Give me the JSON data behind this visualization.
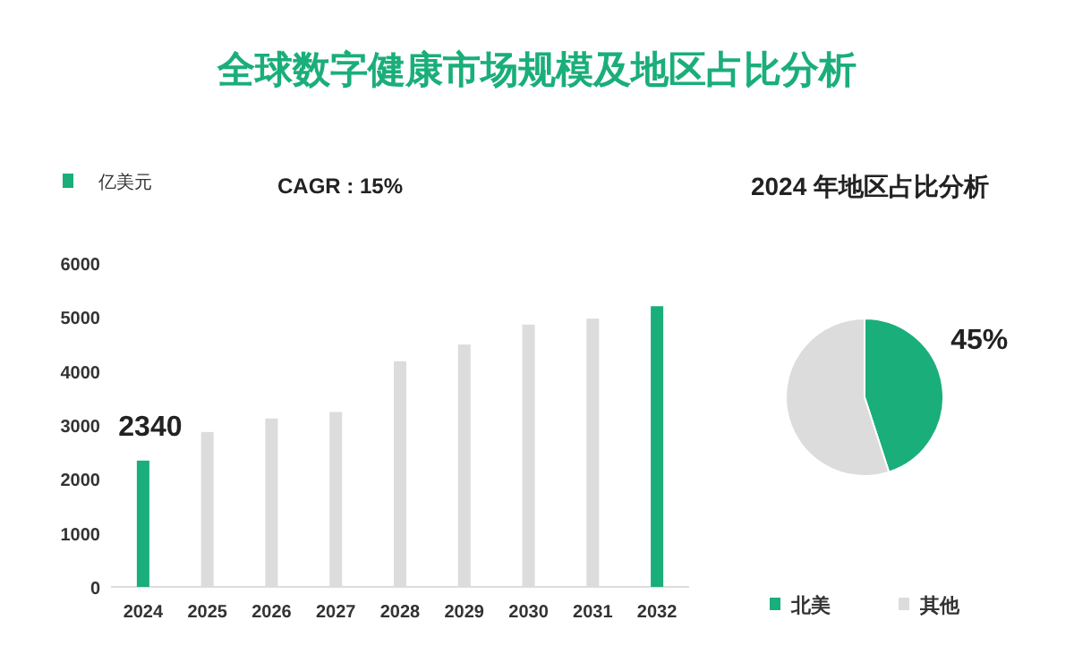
{
  "chart_data": [
    {
      "type": "bar",
      "title": "全球数字健康市场规模及地区占比分析",
      "annotations": [
        "CAGR : 15%"
      ],
      "categories": [
        "2024",
        "2025",
        "2026",
        "2027",
        "2028",
        "2029",
        "2030",
        "2031",
        "2032"
      ],
      "series": [
        {
          "name": "亿美元",
          "color": "#1aae7a",
          "colors": [
            "#1aae7a",
            "#dcdcdc",
            "#dcdcdc",
            "#dcdcdc",
            "#dcdcdc",
            "#dcdcdc",
            "#dcdcdc",
            "#dcdcdc",
            "#1aae7a"
          ],
          "values": [
            2340,
            2870,
            3120,
            3240,
            4180,
            4490,
            4860,
            4970,
            5200
          ],
          "value_labels": [
            "2340",
            null,
            null,
            null,
            null,
            null,
            null,
            null,
            null
          ]
        }
      ],
      "ylim": [
        0,
        6000
      ],
      "yticks": [
        0,
        1000,
        2000,
        3000,
        4000,
        5000,
        6000
      ],
      "grid": false,
      "legend": "top left"
    },
    {
      "type": "pie",
      "title": "2024 年地区占比分析",
      "categories": [
        "北美",
        "其他"
      ],
      "values": [
        45,
        55
      ],
      "colors": [
        "#1aae7a",
        "#dcdcdc"
      ],
      "value_labels": [
        "45%",
        null
      ],
      "legend": "bottom"
    }
  ]
}
